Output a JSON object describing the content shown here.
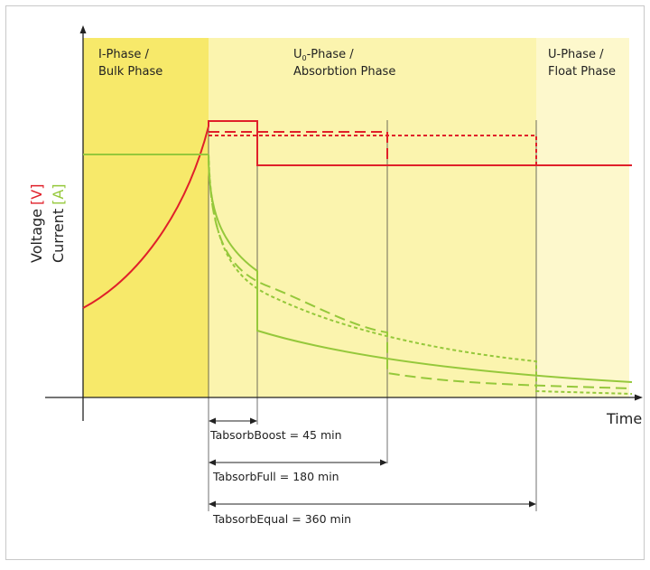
{
  "phases": [
    {
      "line1": "I-Phase /",
      "line2": "Bulk Phase",
      "color": "#f7e96a"
    },
    {
      "line1_pre": "U",
      "line1_sub": "0",
      "line1_post": "-Phase /",
      "line2": "Absorbtion Phase",
      "color": "#fbf4ae"
    },
    {
      "line1": "U-Phase /",
      "line2": "Float Phase",
      "color": "#fdf8cc"
    }
  ],
  "axes": {
    "y_label_voltage": "Voltage",
    "y_label_voltage_unit": "[V]",
    "y_label_current": "Current",
    "y_label_current_unit": "[A]",
    "x_label": "Time"
  },
  "durations": [
    {
      "label": "TabsorbBoost = 45 min"
    },
    {
      "label": "TabsorbFull = 180 min"
    },
    {
      "label": "TabsorbEqual = 360 min"
    }
  ],
  "colors": {
    "voltage": "#e0202a",
    "current": "#95c83b",
    "axis": "#222222",
    "frame": "#c8c8c8"
  }
}
